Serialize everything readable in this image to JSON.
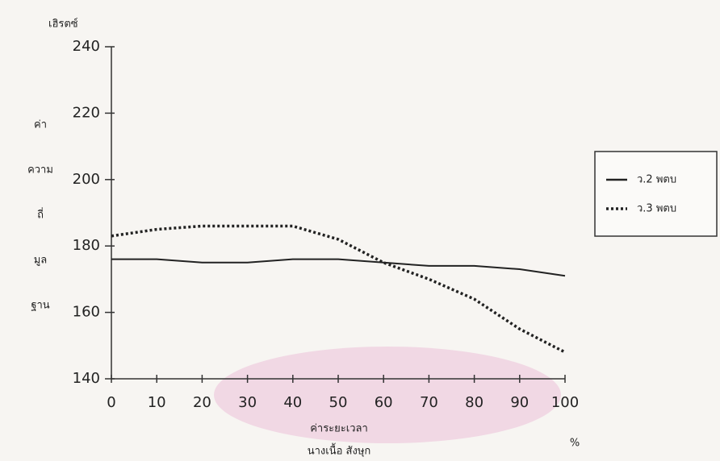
{
  "chart_data": {
    "type": "line",
    "y_unit": "เฮิรตซ์",
    "y_label": [
      "ค่า",
      "ความ",
      "ถี่",
      "มูล",
      "ฐาน"
    ],
    "x_label": [
      "ค่าระยะเวลา",
      "นางเนื้อ สังษุก"
    ],
    "x_unit": "%",
    "x": [
      0,
      10,
      20,
      30,
      40,
      50,
      60,
      70,
      80,
      90,
      100
    ],
    "series": [
      {
        "name": "ว.2 พตบ",
        "color": "#222222",
        "line_style": "solid",
        "values": [
          176,
          176,
          175,
          175,
          176,
          176,
          175,
          174,
          174,
          173,
          171
        ]
      },
      {
        "name": "ว.3 พตบ",
        "color": "#222222",
        "line_style": "dotted",
        "values": [
          183,
          185,
          186,
          186,
          186,
          182,
          175,
          170,
          164,
          155,
          148
        ]
      }
    ],
    "xlim": [
      0,
      100
    ],
    "xticks": [
      0,
      10,
      20,
      30,
      40,
      50,
      60,
      70,
      80,
      90,
      100
    ],
    "ylim": [
      140,
      240
    ],
    "yticks": [
      140,
      160,
      180,
      200,
      220,
      240
    ],
    "legend": "right"
  }
}
